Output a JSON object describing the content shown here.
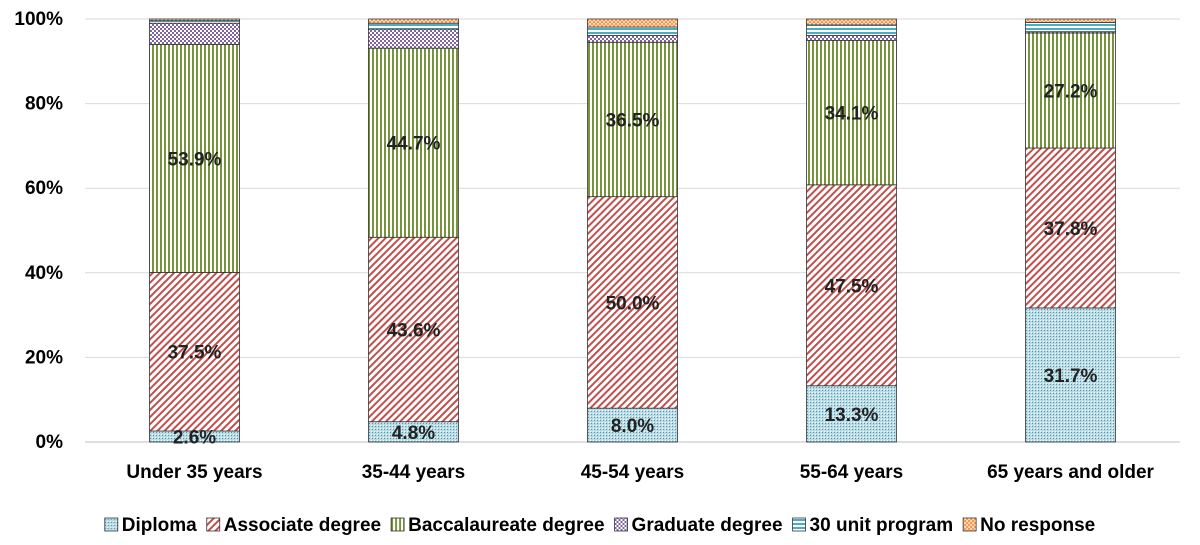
{
  "chart_data": {
    "type": "bar",
    "stacked": true,
    "percent_stacked": true,
    "categories": [
      "Under 35 years",
      "35-44 years",
      "45-54 years",
      "55-64 years",
      "65 years and older"
    ],
    "series": [
      {
        "name": "Diploma",
        "values": [
          2.6,
          4.8,
          8.0,
          13.3,
          31.7
        ],
        "labels": [
          "2.6%",
          "4.8%",
          "8.0%",
          "13.3%",
          "31.7%"
        ],
        "color": "#b7dde8",
        "pattern": "dots"
      },
      {
        "name": "Associate degree",
        "values": [
          37.5,
          43.6,
          50.0,
          47.5,
          37.8
        ],
        "labels": [
          "37.5%",
          "43.6%",
          "50.0%",
          "47.5%",
          "37.8%"
        ],
        "color": "#c0504d",
        "pattern": "diagonal"
      },
      {
        "name": "Baccalaureate degree",
        "values": [
          53.9,
          44.7,
          36.5,
          34.1,
          27.2
        ],
        "labels": [
          "53.9%",
          "44.7%",
          "36.5%",
          "34.1%",
          "27.2%"
        ],
        "color": "#77933c",
        "pattern": "vertical"
      },
      {
        "name": "Graduate degree",
        "values": [
          5.0,
          4.5,
          1.6,
          1.2,
          0.3
        ],
        "labels": [
          "",
          "",
          "",
          "",
          ""
        ],
        "color": "#8064a2",
        "pattern": "checker"
      },
      {
        "name": "30 unit program",
        "values": [
          0.6,
          1.4,
          2.0,
          2.5,
          2.2
        ],
        "labels": [
          "",
          "",
          "",
          "",
          ""
        ],
        "color": "#4bacc6",
        "pattern": "horizontal"
      },
      {
        "name": "No response",
        "values": [
          0.4,
          1.0,
          1.9,
          1.4,
          0.8
        ],
        "labels": [
          "",
          "",
          "",
          "",
          ""
        ],
        "color": "#f79646",
        "pattern": "crosshatch"
      }
    ],
    "y_ticks": [
      "0%",
      "20%",
      "40%",
      "60%",
      "80%",
      "100%"
    ],
    "ylim": [
      0,
      100
    ],
    "grid": true,
    "legend_position": "bottom"
  }
}
